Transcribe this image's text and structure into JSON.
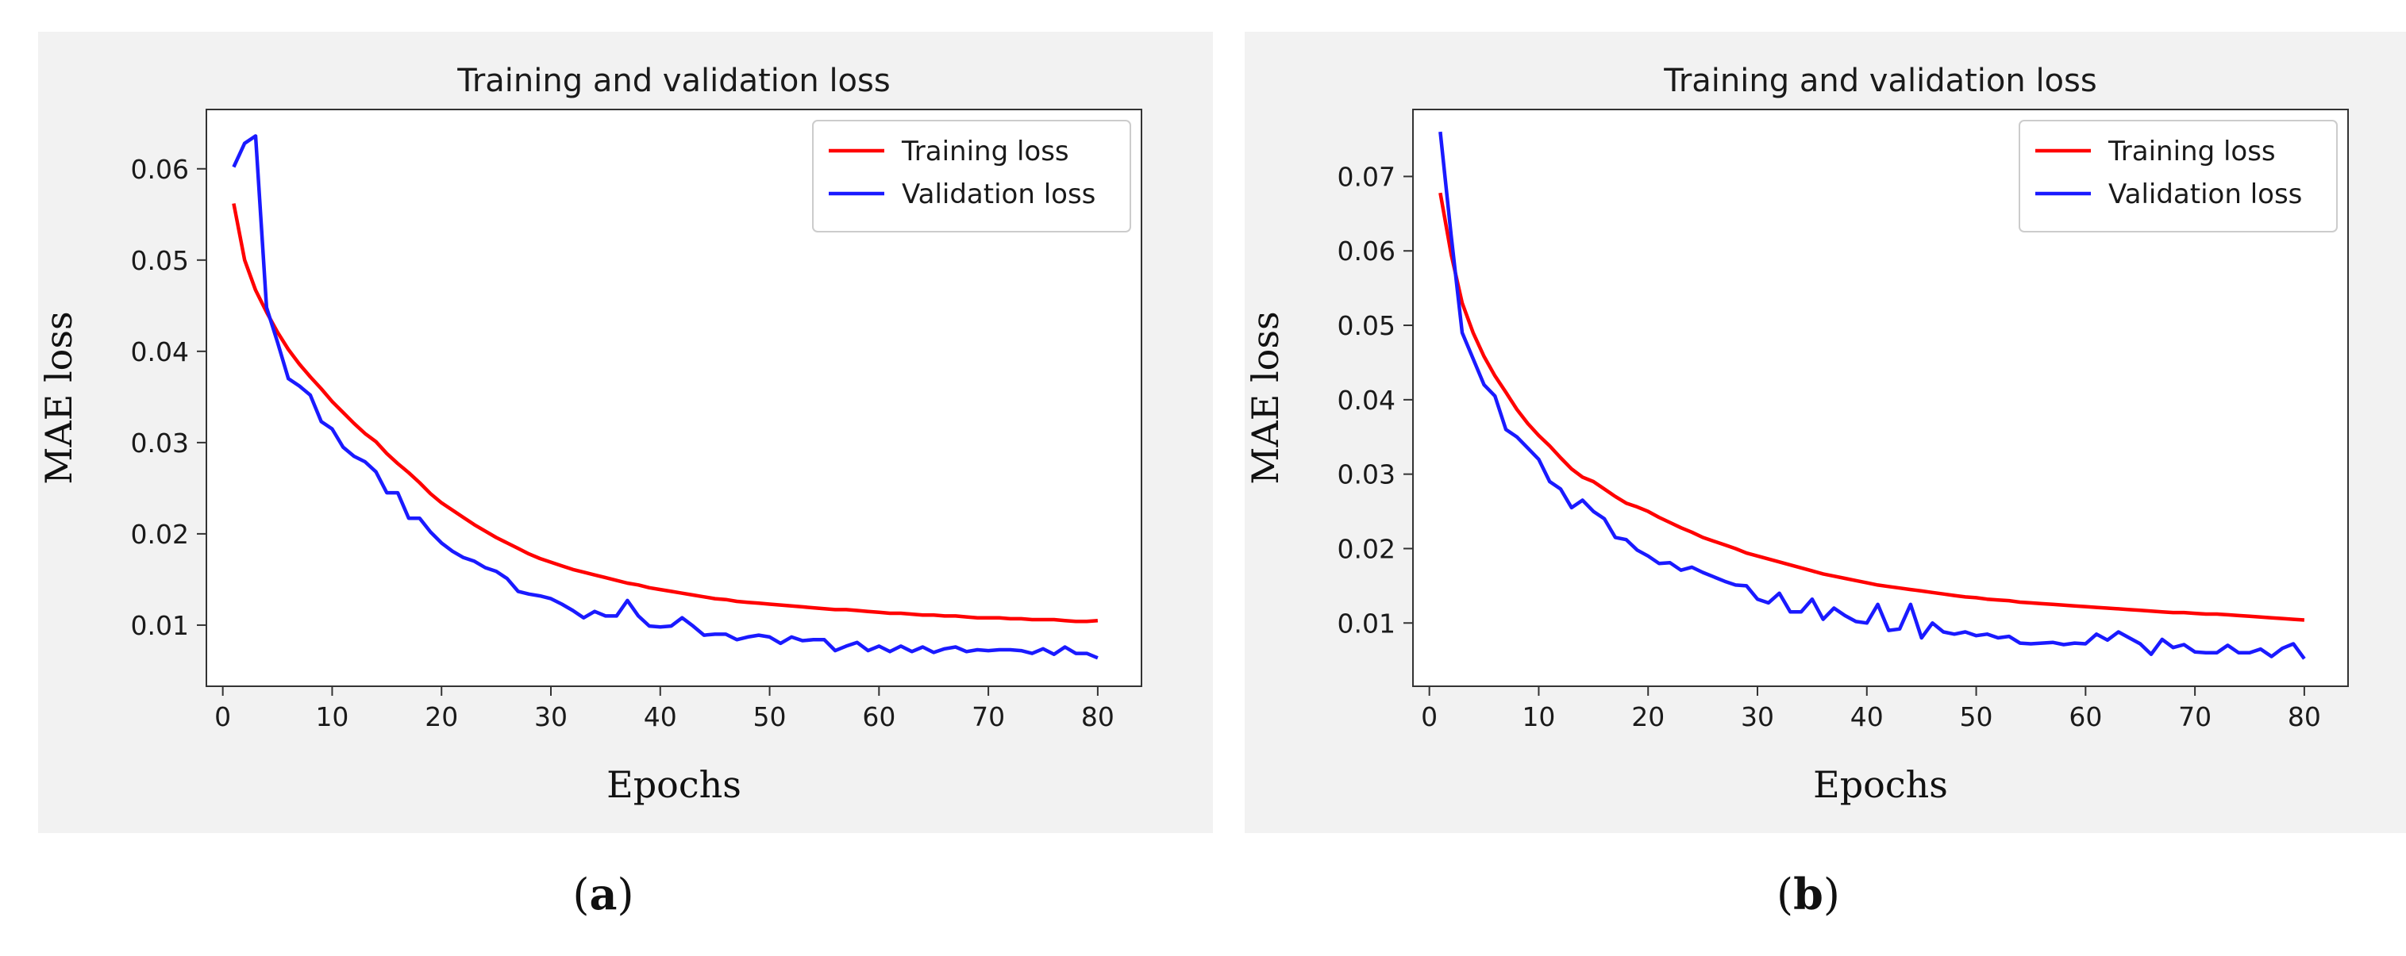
{
  "chart_data": [
    {
      "type": "line",
      "panel_label": "a",
      "title": "Training and validation loss",
      "xlabel": "Epochs",
      "ylabel": "MAE loss",
      "xlim": [
        -1.5,
        84
      ],
      "ylim": [
        0.0033,
        0.0665
      ],
      "xticks": [
        0,
        10,
        20,
        30,
        40,
        50,
        60,
        70,
        80
      ],
      "yticks": [
        0.01,
        0.02,
        0.03,
        0.04,
        0.05,
        0.06
      ],
      "legend_position": "upper right",
      "series": [
        {
          "name": "Training loss",
          "color": "#ff0000",
          "x": [
            1,
            2,
            3,
            4,
            5,
            6,
            7,
            8,
            9,
            10,
            11,
            12,
            13,
            14,
            15,
            16,
            17,
            18,
            19,
            20,
            21,
            22,
            23,
            24,
            25,
            26,
            27,
            28,
            29,
            30,
            31,
            32,
            33,
            34,
            35,
            36,
            37,
            38,
            39,
            40,
            41,
            42,
            43,
            44,
            45,
            46,
            47,
            48,
            49,
            50,
            51,
            52,
            53,
            54,
            55,
            56,
            57,
            58,
            59,
            60,
            61,
            62,
            63,
            64,
            65,
            66,
            67,
            68,
            69,
            70,
            71,
            72,
            73,
            74,
            75,
            76,
            77,
            78,
            79,
            80
          ],
          "y": [
            0.0562,
            0.05,
            0.0467,
            0.0443,
            0.0421,
            0.0402,
            0.0386,
            0.0372,
            0.0359,
            0.0345,
            0.0333,
            0.0321,
            0.031,
            0.0301,
            0.0288,
            0.0277,
            0.0267,
            0.0256,
            0.0244,
            0.0234,
            0.0226,
            0.0218,
            0.021,
            0.0203,
            0.0196,
            0.019,
            0.0184,
            0.0178,
            0.0173,
            0.0169,
            0.0165,
            0.0161,
            0.0158,
            0.0155,
            0.0152,
            0.0149,
            0.0146,
            0.0144,
            0.0141,
            0.0139,
            0.0137,
            0.0135,
            0.0133,
            0.0131,
            0.0129,
            0.0128,
            0.0126,
            0.0125,
            0.0124,
            0.0123,
            0.0122,
            0.0121,
            0.012,
            0.0119,
            0.0118,
            0.0117,
            0.0117,
            0.0116,
            0.0115,
            0.0114,
            0.0113,
            0.0113,
            0.0112,
            0.0111,
            0.0111,
            0.011,
            0.011,
            0.0109,
            0.0108,
            0.0108,
            0.0108,
            0.0107,
            0.0107,
            0.0106,
            0.0106,
            0.0106,
            0.0105,
            0.0104,
            0.0104,
            0.0105
          ]
        },
        {
          "name": "Validation loss",
          "color": "#1a1aff",
          "x": [
            1,
            2,
            3,
            4,
            5,
            6,
            7,
            8,
            9,
            10,
            11,
            12,
            13,
            14,
            15,
            16,
            17,
            18,
            19,
            20,
            21,
            22,
            23,
            24,
            25,
            26,
            27,
            28,
            29,
            30,
            31,
            32,
            33,
            34,
            35,
            36,
            37,
            38,
            39,
            40,
            41,
            42,
            43,
            44,
            45,
            46,
            47,
            48,
            49,
            50,
            51,
            52,
            53,
            54,
            55,
            56,
            57,
            58,
            59,
            60,
            61,
            62,
            63,
            64,
            65,
            66,
            67,
            68,
            69,
            70,
            71,
            72,
            73,
            74,
            75,
            76,
            77,
            78,
            79,
            80
          ],
          "y": [
            0.0602,
            0.0628,
            0.0636,
            0.0448,
            0.041,
            0.037,
            0.0362,
            0.0352,
            0.0323,
            0.0315,
            0.0295,
            0.0285,
            0.0279,
            0.0268,
            0.0245,
            0.0245,
            0.0217,
            0.0217,
            0.0202,
            0.019,
            0.0181,
            0.0174,
            0.017,
            0.0163,
            0.0159,
            0.0151,
            0.0137,
            0.0134,
            0.0132,
            0.0129,
            0.0123,
            0.0116,
            0.0108,
            0.0115,
            0.011,
            0.011,
            0.0127,
            0.011,
            0.0099,
            0.0098,
            0.0099,
            0.0108,
            0.0099,
            0.0089,
            0.009,
            0.009,
            0.0084,
            0.0087,
            0.0089,
            0.0087,
            0.008,
            0.0087,
            0.0083,
            0.0084,
            0.0084,
            0.0072,
            0.0077,
            0.0081,
            0.0072,
            0.0077,
            0.0071,
            0.0077,
            0.0071,
            0.0076,
            0.007,
            0.0074,
            0.0076,
            0.0071,
            0.0073,
            0.0072,
            0.0073,
            0.0073,
            0.0072,
            0.0069,
            0.0074,
            0.0068,
            0.0076,
            0.0069,
            0.0069,
            0.0064
          ]
        }
      ]
    },
    {
      "type": "line",
      "panel_label": "b",
      "title": "Training and validation loss",
      "xlabel": "Epochs",
      "ylabel": "MAE loss",
      "xlim": [
        -1.5,
        84
      ],
      "ylim": [
        0.0015,
        0.079
      ],
      "xticks": [
        0,
        10,
        20,
        30,
        40,
        50,
        60,
        70,
        80
      ],
      "yticks": [
        0.01,
        0.02,
        0.03,
        0.04,
        0.05,
        0.06,
        0.07
      ],
      "legend_position": "upper right",
      "series": [
        {
          "name": "Training loss",
          "color": "#ff0000",
          "x": [
            1,
            2,
            3,
            4,
            5,
            6,
            7,
            8,
            9,
            10,
            11,
            12,
            13,
            14,
            15,
            16,
            17,
            18,
            19,
            20,
            21,
            22,
            23,
            24,
            25,
            26,
            27,
            28,
            29,
            30,
            31,
            32,
            33,
            34,
            35,
            36,
            37,
            38,
            39,
            40,
            41,
            42,
            43,
            44,
            45,
            46,
            47,
            48,
            49,
            50,
            51,
            52,
            53,
            54,
            55,
            56,
            57,
            58,
            59,
            60,
            61,
            62,
            63,
            64,
            65,
            66,
            67,
            68,
            69,
            70,
            71,
            72,
            73,
            74,
            75,
            76,
            77,
            78,
            79,
            80
          ],
          "y": [
            0.0678,
            0.0595,
            0.053,
            0.049,
            0.0458,
            0.0432,
            0.041,
            0.0387,
            0.0368,
            0.0352,
            0.0338,
            0.0322,
            0.0307,
            0.0296,
            0.029,
            0.028,
            0.027,
            0.0261,
            0.0256,
            0.025,
            0.0242,
            0.0235,
            0.0228,
            0.0222,
            0.0215,
            0.021,
            0.0205,
            0.02,
            0.0194,
            0.019,
            0.0186,
            0.0182,
            0.0178,
            0.0174,
            0.017,
            0.0166,
            0.0163,
            0.016,
            0.0157,
            0.0154,
            0.0151,
            0.0149,
            0.0147,
            0.0145,
            0.0143,
            0.0141,
            0.0139,
            0.0137,
            0.0135,
            0.0134,
            0.0132,
            0.0131,
            0.013,
            0.0128,
            0.0127,
            0.0126,
            0.0125,
            0.0124,
            0.0123,
            0.0122,
            0.0121,
            0.012,
            0.0119,
            0.0118,
            0.0117,
            0.0116,
            0.0115,
            0.0114,
            0.0114,
            0.0113,
            0.0112,
            0.0112,
            0.0111,
            0.011,
            0.0109,
            0.0108,
            0.0107,
            0.0106,
            0.0105,
            0.0104
          ]
        },
        {
          "name": "Validation loss",
          "color": "#1a1aff",
          "x": [
            1,
            2,
            3,
            4,
            5,
            6,
            7,
            8,
            9,
            10,
            11,
            12,
            13,
            14,
            15,
            16,
            17,
            18,
            19,
            20,
            21,
            22,
            23,
            24,
            25,
            26,
            27,
            28,
            29,
            30,
            31,
            32,
            33,
            34,
            35,
            36,
            37,
            38,
            39,
            40,
            41,
            42,
            43,
            44,
            45,
            46,
            47,
            48,
            49,
            50,
            51,
            52,
            53,
            54,
            55,
            56,
            57,
            58,
            59,
            60,
            61,
            62,
            63,
            64,
            65,
            66,
            67,
            68,
            69,
            70,
            71,
            72,
            73,
            74,
            75,
            76,
            77,
            78,
            79,
            80
          ],
          "y": [
            0.076,
            0.062,
            0.049,
            0.0455,
            0.042,
            0.0405,
            0.036,
            0.035,
            0.0335,
            0.032,
            0.029,
            0.028,
            0.0255,
            0.0265,
            0.025,
            0.024,
            0.0215,
            0.0212,
            0.0198,
            0.019,
            0.018,
            0.0181,
            0.0171,
            0.0175,
            0.0168,
            0.0162,
            0.0156,
            0.0151,
            0.015,
            0.0132,
            0.0127,
            0.014,
            0.0115,
            0.0115,
            0.0132,
            0.0105,
            0.012,
            0.011,
            0.0102,
            0.01,
            0.0125,
            0.009,
            0.0092,
            0.0125,
            0.008,
            0.01,
            0.0088,
            0.0085,
            0.0088,
            0.0083,
            0.0085,
            0.008,
            0.0082,
            0.0073,
            0.0072,
            0.0073,
            0.0074,
            0.0071,
            0.0073,
            0.0072,
            0.0085,
            0.0077,
            0.0088,
            0.008,
            0.0072,
            0.0058,
            0.0078,
            0.0067,
            0.0071,
            0.0061,
            0.006,
            0.006,
            0.007,
            0.006,
            0.006,
            0.0065,
            0.0055,
            0.0066,
            0.0072,
            0.0052
          ]
        }
      ]
    }
  ],
  "captions": [
    "a",
    "b"
  ]
}
